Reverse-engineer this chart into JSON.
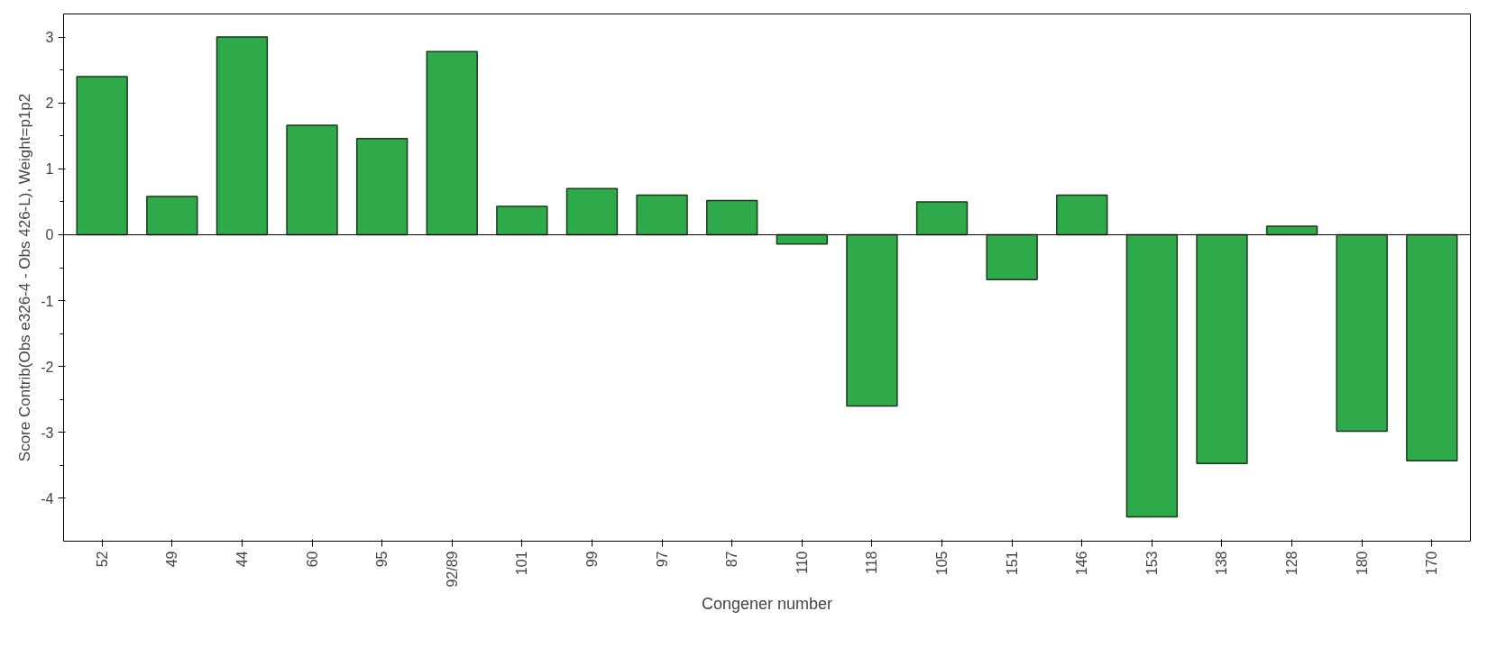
{
  "chart_data": {
    "type": "bar",
    "xlabel": "Congener number",
    "ylabel": "Score Contrib(Obs e326-4 - Obs 426-L), Weight=p1p2",
    "categories": [
      "52",
      "49",
      "44",
      "60",
      "95",
      "92/89",
      "101",
      "99",
      "97",
      "87",
      "110",
      "118",
      "105",
      "151",
      "146",
      "153",
      "138",
      "128",
      "180",
      "170"
    ],
    "values": [
      2.4,
      0.58,
      3.0,
      1.66,
      1.46,
      2.78,
      0.43,
      0.7,
      0.6,
      0.52,
      -0.14,
      -2.6,
      0.5,
      -0.68,
      0.6,
      -4.28,
      -3.47,
      0.13,
      -2.98,
      -3.43
    ],
    "color": "#2eaa4a",
    "ylim": [
      -4.65,
      3.35
    ],
    "yticks": [
      -4,
      {
        "value": -3.5,
        "label": null
      },
      -3,
      {
        "value": -2.5,
        "label": null
      },
      -2,
      {
        "value": -1.5,
        "label": null
      },
      -1,
      {
        "value": -0.5,
        "label": null
      },
      0,
      {
        "value": 0.5,
        "label": null
      },
      1,
      {
        "value": 1.5,
        "label": null
      },
      2,
      {
        "value": 2.5,
        "label": null
      },
      3
    ],
    "tick_labels": [
      "x",
      "y"
    ]
  }
}
